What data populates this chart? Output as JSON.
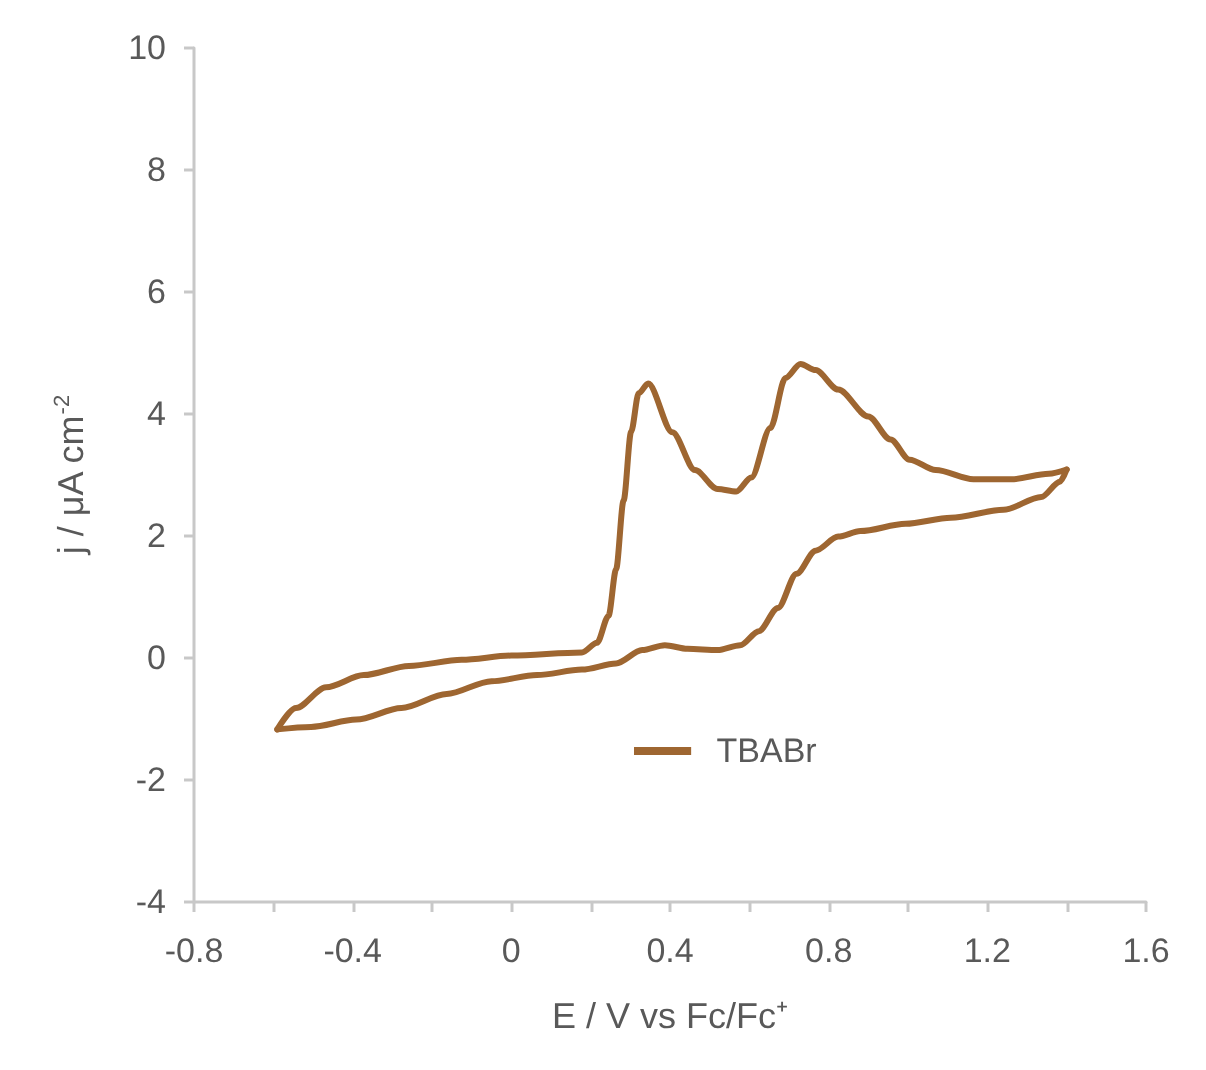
{
  "chart_data": {
    "type": "line",
    "xlabel": "E / V vs Fc/Fc⁺",
    "ylabel": "j / μA cm$^{-2}$",
    "xlim": [
      -0.8,
      1.6
    ],
    "xticks": [
      -0.8,
      {
        "value": -0.6,
        "label": null
      },
      -0.4,
      {
        "value": -0.2,
        "label": null
      },
      0,
      {
        "value": 0.2,
        "label": null
      },
      0.4,
      {
        "value": 0.6,
        "label": null
      },
      0.8,
      {
        "value": 1.0,
        "label": null
      },
      1.2,
      {
        "value": 1.4,
        "label": null
      },
      1.6
    ],
    "ylim": [
      -4,
      10
    ],
    "yticks": [
      -4,
      -2,
      0,
      2,
      4,
      6,
      8,
      10
    ],
    "grid": false,
    "legend": "bottom",
    "marker": "none",
    "line_style": "solid",
    "series": [
      {
        "name": "TBABr",
        "color": "#9e6631",
        "x": [
          -0.59,
          -0.543,
          -0.467,
          -0.372,
          -0.258,
          -0.125,
          0,
          0.178,
          0.216,
          0.245,
          0.264,
          0.283,
          0.302,
          0.321,
          0.345,
          0.406,
          0.463,
          0.52,
          0.567,
          0.605,
          0.653,
          0.691,
          0.729,
          0.767,
          0.824,
          0.9,
          0.956,
          1.004,
          1.07,
          1.165,
          1.26,
          1.355,
          1.4
        ],
        "values": [
          -1.17,
          -0.82,
          -0.48,
          -0.28,
          -0.13,
          -0.03,
          0.04,
          0.09,
          0.25,
          0.69,
          1.45,
          2.58,
          3.71,
          4.34,
          4.5,
          3.7,
          3.08,
          2.77,
          2.73,
          2.96,
          3.77,
          4.59,
          4.82,
          4.72,
          4.4,
          3.96,
          3.58,
          3.25,
          3.08,
          2.93,
          2.93,
          3.02,
          3.09
        ]
      },
      {
        "color": "#9e6631",
        "x": [
          -0.59,
          -0.505,
          -0.391,
          -0.277,
          -0.163,
          -0.05,
          0.065,
          0.178,
          0.264,
          0.33,
          0.387,
          0.444,
          0.52,
          0.577,
          0.624,
          0.672,
          0.719,
          0.767,
          0.824,
          0.88,
          0.994,
          1.108,
          1.241,
          1.336,
          1.383,
          1.4
        ],
        "values": [
          -1.17,
          -1.13,
          -1.01,
          -0.82,
          -0.59,
          -0.38,
          -0.28,
          -0.19,
          -0.09,
          0.13,
          0.21,
          0.15,
          0.13,
          0.21,
          0.44,
          0.82,
          1.38,
          1.76,
          1.99,
          2.08,
          2.2,
          2.3,
          2.43,
          2.64,
          2.89,
          3.09
        ]
      }
    ]
  }
}
